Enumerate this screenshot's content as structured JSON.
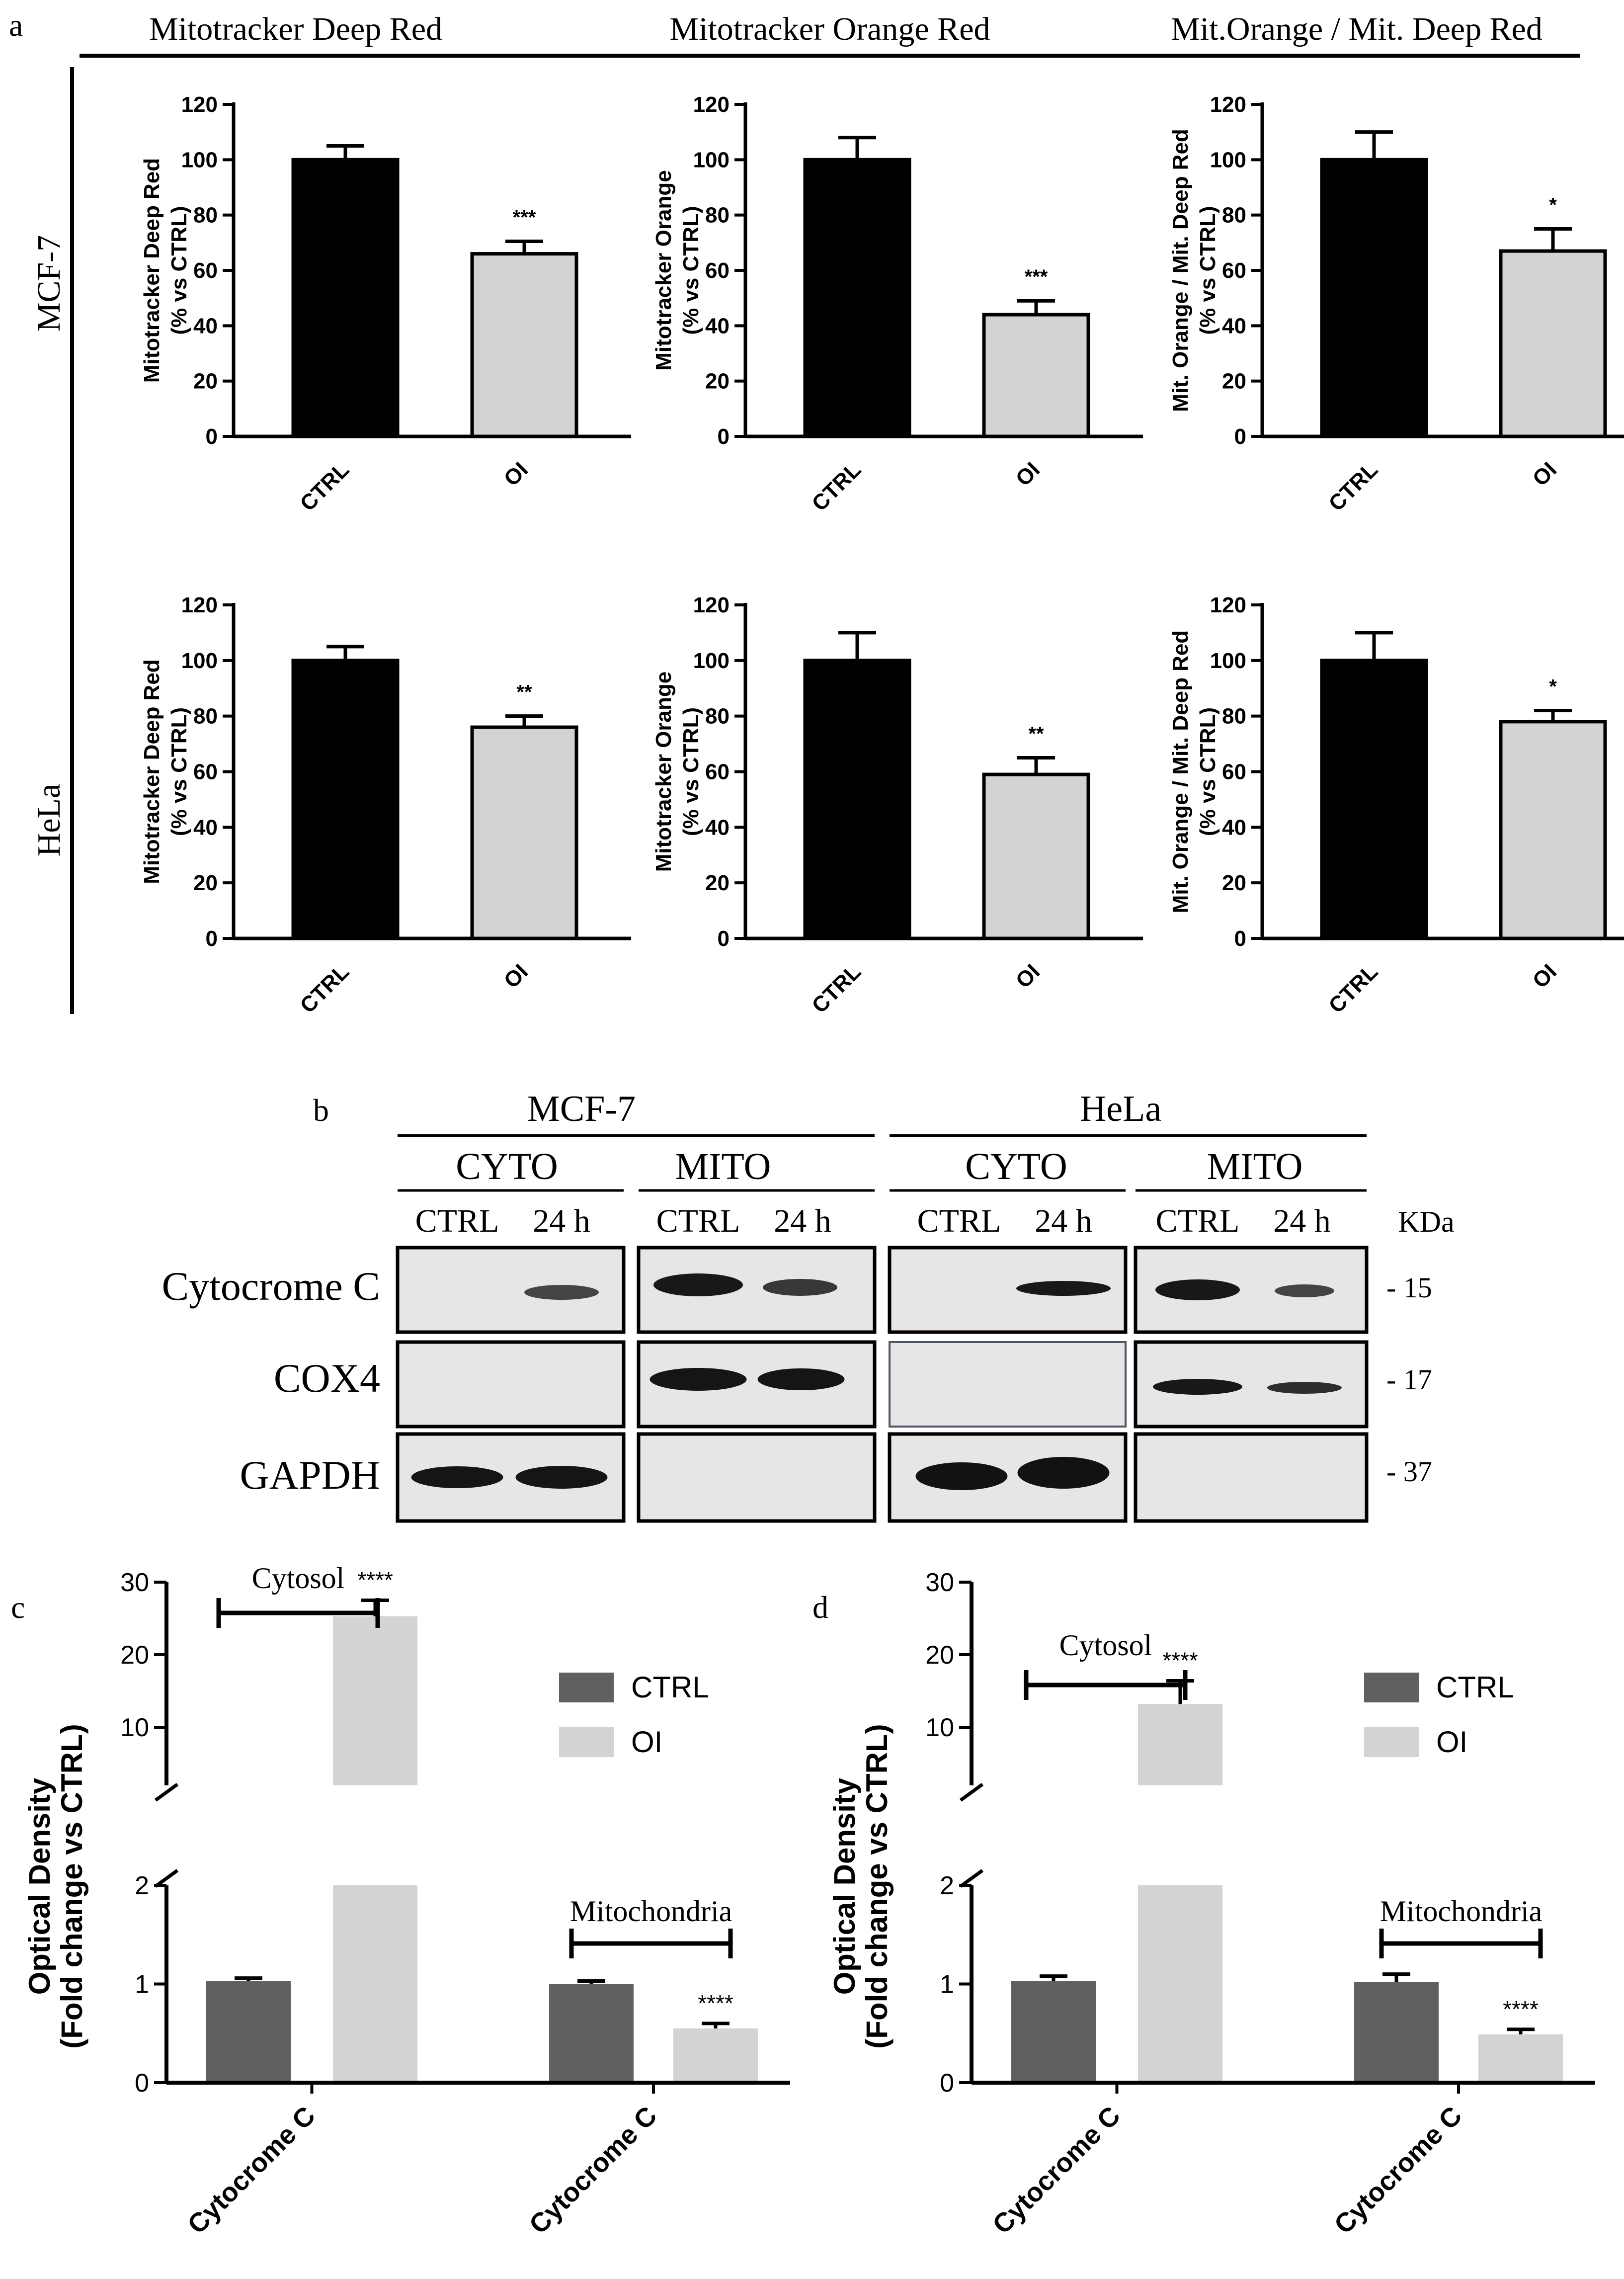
{
  "panel_letters": [
    "a",
    "b",
    "c",
    "d"
  ],
  "panel_a": {
    "column_titles": [
      "Mitotracker Deep Red",
      "Mitotracker Orange Red",
      "Mit.Orange / Mit. Deep Red"
    ],
    "row_labels": [
      "MCF-7",
      "HeLa"
    ]
  },
  "panel_b": {
    "cell_lines": [
      "MCF-7",
      "HeLa"
    ],
    "fractions": [
      "CYTO",
      "MITO",
      "CYTO",
      "MITO"
    ],
    "lanes": [
      "CTRL",
      "24 h",
      "CTRL",
      "24 h",
      "CTRL",
      "24 h",
      "CTRL",
      "24 h"
    ],
    "proteins": [
      "Cytocrome C",
      "COX4",
      "GAPDH"
    ],
    "kda_header": "KDa",
    "kda_markers": [
      "- 15",
      "- 17",
      "- 37"
    ]
  },
  "chart_data": [
    {
      "id": "a-mcf7-deepred",
      "type": "bar",
      "title": "Mitotracker Deep Red",
      "ylabel": "Mitotracker Deep Red\n(% vs CTRL)",
      "categories": [
        "CTRL",
        "OI"
      ],
      "values": [
        100,
        66
      ],
      "errors": [
        5,
        4.5
      ],
      "colors": [
        "#000000",
        "#d3d3d3"
      ],
      "ylim": [
        0,
        120
      ],
      "yticks": [
        0,
        20,
        40,
        60,
        80,
        100,
        120
      ],
      "significance": "***"
    },
    {
      "id": "a-mcf7-orange",
      "type": "bar",
      "title": "Mitotracker Orange Red",
      "ylabel": "Mitotracker Orange\n(% vs CTRL)",
      "categories": [
        "CTRL",
        "OI"
      ],
      "values": [
        100,
        44
      ],
      "errors": [
        8,
        5
      ],
      "colors": [
        "#000000",
        "#d3d3d3"
      ],
      "ylim": [
        0,
        120
      ],
      "yticks": [
        0,
        20,
        40,
        60,
        80,
        100,
        120
      ],
      "significance": "***"
    },
    {
      "id": "a-mcf7-ratio",
      "type": "bar",
      "title": "Mit.Orange / Mit. Deep Red",
      "ylabel": "Mit. Orange / Mit. Deep Red\n(% vs CTRL)",
      "categories": [
        "CTRL",
        "OI"
      ],
      "values": [
        100,
        67
      ],
      "errors": [
        10,
        8
      ],
      "colors": [
        "#000000",
        "#d3d3d3"
      ],
      "ylim": [
        0,
        120
      ],
      "yticks": [
        0,
        20,
        40,
        60,
        80,
        100,
        120
      ],
      "significance": "*"
    },
    {
      "id": "a-hela-deepred",
      "type": "bar",
      "title": "Mitotracker Deep Red",
      "ylabel": "Mitotracker Deep Red\n(% vs CTRL)",
      "categories": [
        "CTRL",
        "OI"
      ],
      "values": [
        100,
        76
      ],
      "errors": [
        5,
        4
      ],
      "colors": [
        "#000000",
        "#d3d3d3"
      ],
      "ylim": [
        0,
        120
      ],
      "yticks": [
        0,
        20,
        40,
        60,
        80,
        100,
        120
      ],
      "significance": "**"
    },
    {
      "id": "a-hela-orange",
      "type": "bar",
      "title": "Mitotracker Orange Red",
      "ylabel": "Mitotracker Orange\n(% vs CTRL)",
      "categories": [
        "CTRL",
        "OI"
      ],
      "values": [
        100,
        59
      ],
      "errors": [
        10,
        6
      ],
      "colors": [
        "#000000",
        "#d3d3d3"
      ],
      "ylim": [
        0,
        120
      ],
      "yticks": [
        0,
        20,
        40,
        60,
        80,
        100,
        120
      ],
      "significance": "**"
    },
    {
      "id": "a-hela-ratio",
      "type": "bar",
      "title": "Mit.Orange / Mit. Deep Red",
      "ylabel": "Mit. Orange / Mit. Deep Red\n(% vs CTRL)",
      "categories": [
        "CTRL",
        "OI"
      ],
      "values": [
        100,
        78
      ],
      "errors": [
        10,
        4
      ],
      "colors": [
        "#000000",
        "#d3d3d3"
      ],
      "ylim": [
        0,
        120
      ],
      "yticks": [
        0,
        20,
        40,
        60,
        80,
        100,
        120
      ],
      "significance": "*"
    },
    {
      "id": "c",
      "type": "bar",
      "ylabel": "Optical Density\n(Fold change vs CTRL)",
      "categories": [
        "Cytocrome C",
        "Cytocrome C"
      ],
      "groups": [
        "Cytosol",
        "Mitochondria"
      ],
      "series": [
        {
          "name": "CTRL",
          "values": [
            1.03,
            1.0
          ],
          "errors": [
            0.03,
            0.03
          ],
          "color": "#606060"
        },
        {
          "name": "OI",
          "values": [
            25.3,
            0.55
          ],
          "errors": [
            2.2,
            0.05
          ],
          "color": "#d3d3d3"
        }
      ],
      "axis_break": true,
      "lower_yticks": [
        0,
        1,
        2
      ],
      "upper_yticks": [
        10,
        20,
        30
      ],
      "significance": [
        "****",
        "****"
      ]
    },
    {
      "id": "d",
      "type": "bar",
      "ylabel": "Optical Density\n(Fold change vs CTRL)",
      "categories": [
        "Cytocrome C",
        "Cytocrome C"
      ],
      "groups": [
        "Cytosol",
        "Mitochondria"
      ],
      "series": [
        {
          "name": "CTRL",
          "values": [
            1.03,
            1.02
          ],
          "errors": [
            0.05,
            0.08
          ],
          "color": "#606060"
        },
        {
          "name": "OI",
          "values": [
            13.2,
            0.49
          ],
          "errors": [
            3.2,
            0.05
          ],
          "color": "#d3d3d3"
        }
      ],
      "axis_break": true,
      "lower_yticks": [
        0,
        1,
        2
      ],
      "upper_yticks": [
        10,
        20,
        30
      ],
      "significance": [
        "****",
        "****"
      ]
    }
  ]
}
